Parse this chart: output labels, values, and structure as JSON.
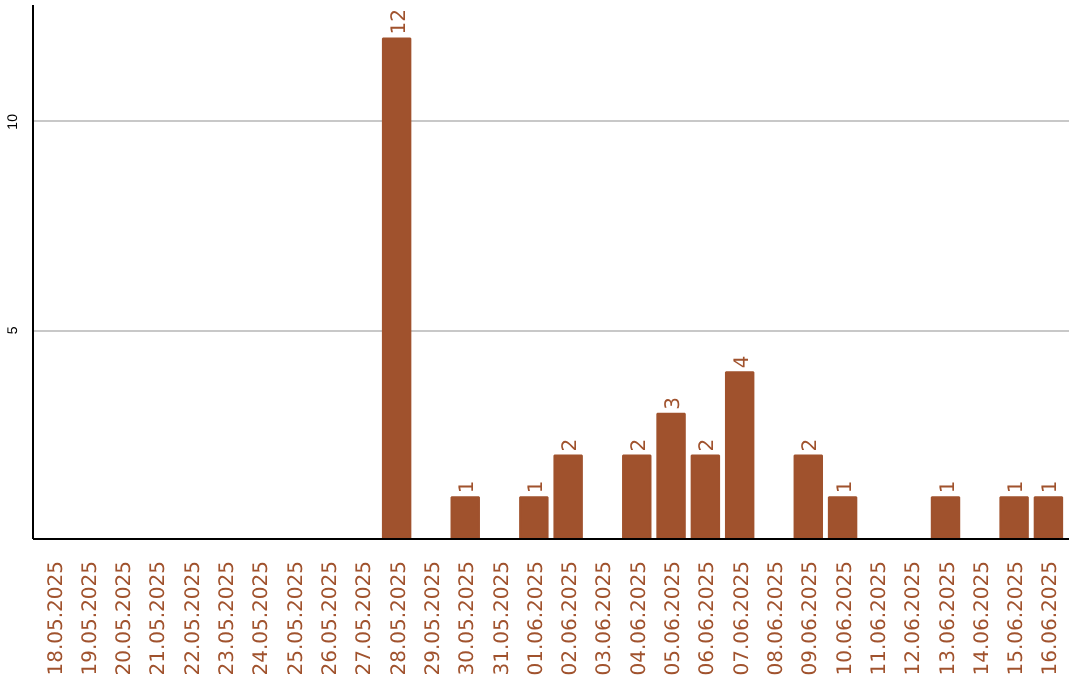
{
  "chart_data": {
    "type": "bar",
    "categories": [
      "18.05.2025",
      "19.05.2025",
      "20.05.2025",
      "21.05.2025",
      "22.05.2025",
      "23.05.2025",
      "24.05.2025",
      "25.05.2025",
      "26.05.2025",
      "27.05.2025",
      "28.05.2025",
      "29.05.2025",
      "30.05.2025",
      "31.05.2025",
      "01.06.2025",
      "02.06.2025",
      "03.06.2025",
      "04.06.2025",
      "05.06.2025",
      "06.06.2025",
      "07.06.2025",
      "08.06.2025",
      "09.06.2025",
      "10.06.2025",
      "11.06.2025",
      "12.06.2025",
      "13.06.2025",
      "14.06.2025",
      "15.06.2025",
      "16.06.2025"
    ],
    "values": [
      0,
      0,
      0,
      0,
      0,
      0,
      0,
      0,
      0,
      0,
      12,
      0,
      1,
      0,
      1,
      2,
      0,
      2,
      3,
      2,
      4,
      0,
      2,
      1,
      0,
      0,
      1,
      0,
      1,
      1
    ],
    "value_labels": [
      null,
      null,
      null,
      null,
      null,
      null,
      null,
      null,
      null,
      null,
      "12",
      null,
      "1",
      null,
      "1",
      "2",
      null,
      "2",
      "3",
      "2",
      "4",
      null,
      "2",
      "1",
      null,
      null,
      "1",
      null,
      "1",
      "1"
    ],
    "color": "#a0522d",
    "ylim": [
      0,
      12.8
    ],
    "yticks": [
      5,
      10
    ],
    "grid": "y"
  }
}
